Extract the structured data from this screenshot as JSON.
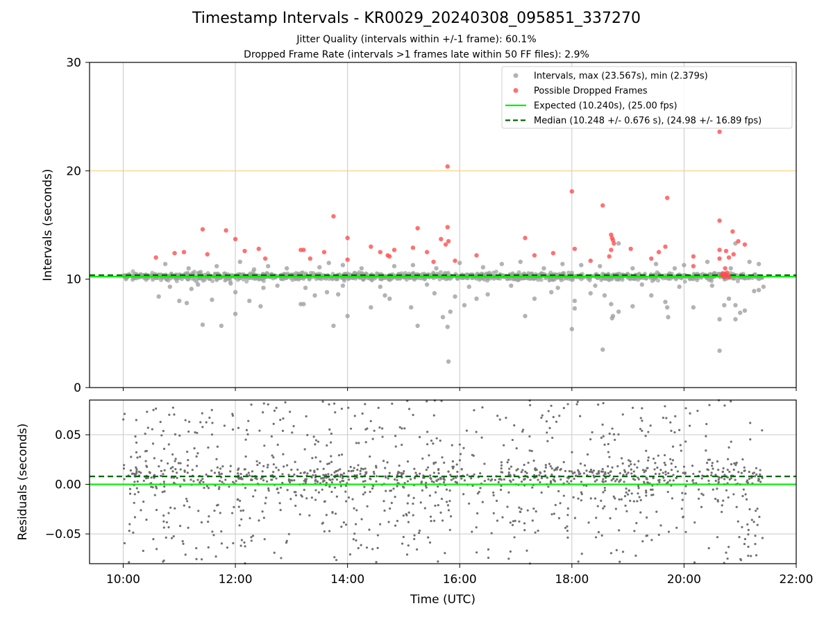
{
  "chart_data": [
    {
      "type": "scatter",
      "title": "Timestamp Intervals - KR0029_20240308_095851_337270",
      "subtitles": [
        "Jitter Quality (intervals within +/-1 frame): 60.1%",
        "Dropped Frame Rate (intervals >1 frames late within 50 FF files): 2.9%"
      ],
      "xlabel": "",
      "ylabel": "Intervals (seconds)",
      "xlim": [
        "09:24",
        "22:00"
      ],
      "ylim": [
        0,
        30
      ],
      "yticks": [
        0,
        10,
        20,
        30
      ],
      "ytick_labels": [
        "0",
        "10",
        "20",
        "30"
      ],
      "grid": "vertical",
      "legend": {
        "position": "top-right",
        "entries": [
          {
            "label": "Intervals, max (23.567s), min (2.379s)",
            "marker": "circle",
            "color": "#a0a0a0"
          },
          {
            "label": "Possible Dropped Frames",
            "marker": "circle",
            "color": "#ff4d4d"
          },
          {
            "label": "Expected (10.240s), (25.00 fps)",
            "marker": "line",
            "color": "#00ee00"
          },
          {
            "label": "Median (10.248 +/- 0.676 s), (24.98 +/- 16.89 fps)",
            "marker": "dashed",
            "color": "#006400"
          }
        ]
      },
      "reference_lines": {
        "expected": 10.24,
        "median": 10.248,
        "threshold": 20
      },
      "series": [
        {
          "name": "Possible Dropped Frames",
          "color": "#ff4d4d",
          "points": [
            [
              "10:35",
              12.0
            ],
            [
              "10:55",
              12.4
            ],
            [
              "11:05",
              12.5
            ],
            [
              "11:25",
              14.6
            ],
            [
              "11:30",
              12.3
            ],
            [
              "11:50",
              14.5
            ],
            [
              "12:00",
              13.7
            ],
            [
              "12:10",
              12.6
            ],
            [
              "12:25",
              12.8
            ],
            [
              "12:32",
              11.9
            ],
            [
              "13:10",
              12.7
            ],
            [
              "13:13",
              12.7
            ],
            [
              "13:20",
              11.9
            ],
            [
              "13:35",
              12.5
            ],
            [
              "13:45",
              15.8
            ],
            [
              "14:00",
              13.8
            ],
            [
              "14:00",
              11.8
            ],
            [
              "14:25",
              13.0
            ],
            [
              "14:35",
              12.5
            ],
            [
              "14:43",
              12.2
            ],
            [
              "14:45",
              12.1
            ],
            [
              "14:50",
              12.7
            ],
            [
              "15:10",
              12.9
            ],
            [
              "15:15",
              14.7
            ],
            [
              "15:25",
              12.5
            ],
            [
              "15:32",
              11.6
            ],
            [
              "15:40",
              13.7
            ],
            [
              "15:45",
              13.2
            ],
            [
              "15:47",
              14.8
            ],
            [
              "15:48",
              13.5
            ],
            [
              "15:47",
              20.4
            ],
            [
              "15:55",
              11.7
            ],
            [
              "16:18",
              12.2
            ],
            [
              "17:10",
              13.8
            ],
            [
              "17:20",
              12.2
            ],
            [
              "17:40",
              12.4
            ],
            [
              "18:00",
              18.1
            ],
            [
              "18:03",
              12.8
            ],
            [
              "18:20",
              11.7
            ],
            [
              "18:33",
              16.8
            ],
            [
              "18:42",
              14.1
            ],
            [
              "18:43",
              13.8
            ],
            [
              "18:44",
              13.6
            ],
            [
              "18:45",
              13.3
            ],
            [
              "18:42",
              12.7
            ],
            [
              "18:40",
              12.1
            ],
            [
              "19:03",
              12.8
            ],
            [
              "19:25",
              11.9
            ],
            [
              "19:33",
              12.5
            ],
            [
              "19:40",
              13.0
            ],
            [
              "19:42",
              17.5
            ],
            [
              "20:10",
              12.1
            ],
            [
              "20:10",
              11.2
            ],
            [
              "20:38",
              23.6
            ],
            [
              "20:38",
              15.4
            ],
            [
              "20:38",
              12.7
            ],
            [
              "20:38",
              11.9
            ],
            [
              "20:45",
              12.6
            ],
            [
              "20:48",
              12.0
            ],
            [
              "20:52",
              14.4
            ],
            [
              "20:53",
              12.3
            ],
            [
              "20:58",
              13.5
            ],
            [
              "21:05",
              13.2
            ],
            [
              "20:40",
              10.4
            ],
            [
              "20:42",
              10.5
            ],
            [
              "20:43",
              10.2
            ],
            [
              "20:44",
              10.3
            ],
            [
              "20:45",
              10.4
            ],
            [
              "20:46",
              10.6
            ],
            [
              "20:47",
              10.3
            ],
            [
              "20:48",
              10.2
            ],
            [
              "20:44",
              11.0
            ]
          ]
        },
        {
          "name": "Intervals",
          "color": "#a0a0a0",
          "points": [
            [
              "10:38",
              8.4
            ],
            [
              "11:00",
              8.0
            ],
            [
              "11:08",
              7.8
            ],
            [
              "11:13",
              9.1
            ],
            [
              "11:25",
              5.8
            ],
            [
              "11:35",
              8.1
            ],
            [
              "11:45",
              5.7
            ],
            [
              "12:00",
              6.8
            ],
            [
              "12:00",
              8.8
            ],
            [
              "12:15",
              8.0
            ],
            [
              "12:27",
              7.5
            ],
            [
              "12:30",
              9.2
            ],
            [
              "13:10",
              7.7
            ],
            [
              "13:13",
              7.7
            ],
            [
              "13:25",
              8.5
            ],
            [
              "13:38",
              8.8
            ],
            [
              "13:45",
              5.7
            ],
            [
              "13:50",
              8.6
            ],
            [
              "14:00",
              6.6
            ],
            [
              "14:25",
              7.4
            ],
            [
              "14:40",
              8.5
            ],
            [
              "14:45",
              8.2
            ],
            [
              "15:08",
              7.4
            ],
            [
              "15:15",
              5.7
            ],
            [
              "15:33",
              8.7
            ],
            [
              "15:42",
              6.5
            ],
            [
              "15:47",
              5.6
            ],
            [
              "15:48",
              2.4
            ],
            [
              "15:50",
              7.0
            ],
            [
              "15:55",
              8.4
            ],
            [
              "16:05",
              7.6
            ],
            [
              "16:18",
              8.2
            ],
            [
              "16:30",
              8.6
            ],
            [
              "17:10",
              6.6
            ],
            [
              "17:20",
              8.2
            ],
            [
              "17:38",
              8.8
            ],
            [
              "18:00",
              5.4
            ],
            [
              "18:03",
              8.0
            ],
            [
              "18:03",
              7.3
            ],
            [
              "18:20",
              8.7
            ],
            [
              "18:33",
              3.5
            ],
            [
              "18:35",
              8.5
            ],
            [
              "18:42",
              7.7
            ],
            [
              "18:43",
              6.4
            ],
            [
              "18:44",
              6.6
            ],
            [
              "18:50",
              7.0
            ],
            [
              "19:05",
              7.5
            ],
            [
              "19:25",
              8.5
            ],
            [
              "19:40",
              7.9
            ],
            [
              "19:42",
              7.4
            ],
            [
              "19:43",
              6.5
            ],
            [
              "20:10",
              7.4
            ],
            [
              "20:38",
              3.4
            ],
            [
              "20:38",
              6.3
            ],
            [
              "20:43",
              7.6
            ],
            [
              "20:48",
              8.2
            ],
            [
              "20:55",
              7.6
            ],
            [
              "20:55",
              6.3
            ],
            [
              "21:00",
              6.9
            ],
            [
              "21:05",
              7.1
            ],
            [
              "21:15",
              8.9
            ],
            [
              "21:20",
              9.0
            ],
            [
              "10:45",
              11.4
            ],
            [
              "11:10",
              11.0
            ],
            [
              "11:40",
              11.2
            ],
            [
              "12:05",
              11.6
            ],
            [
              "12:20",
              10.9
            ],
            [
              "12:35",
              11.2
            ],
            [
              "12:55",
              11.0
            ],
            [
              "13:30",
              11.1
            ],
            [
              "13:40",
              11.5
            ],
            [
              "13:55",
              11.3
            ],
            [
              "14:15",
              11.0
            ],
            [
              "14:50",
              11.2
            ],
            [
              "15:10",
              11.3
            ],
            [
              "15:35",
              11.0
            ],
            [
              "16:00",
              11.5
            ],
            [
              "16:25",
              11.1
            ],
            [
              "16:45",
              11.4
            ],
            [
              "17:05",
              11.6
            ],
            [
              "17:30",
              11.0
            ],
            [
              "17:50",
              11.4
            ],
            [
              "18:10",
              11.3
            ],
            [
              "18:30",
              11.2
            ],
            [
              "18:50",
              13.3
            ],
            [
              "19:05",
              11.0
            ],
            [
              "19:30",
              11.4
            ],
            [
              "19:50",
              11.0
            ],
            [
              "20:00",
              11.3
            ],
            [
              "20:25",
              11.6
            ],
            [
              "20:50",
              11.0
            ],
            [
              "20:55",
              13.3
            ],
            [
              "21:10",
              11.6
            ],
            [
              "21:20",
              11.4
            ],
            [
              "10:50",
              9.3
            ],
            [
              "11:20",
              9.5
            ],
            [
              "11:55",
              9.6
            ],
            [
              "12:45",
              9.4
            ],
            [
              "13:15",
              9.2
            ],
            [
              "13:55",
              9.4
            ],
            [
              "14:35",
              9.3
            ],
            [
              "15:25",
              9.5
            ],
            [
              "16:10",
              9.3
            ],
            [
              "16:55",
              9.4
            ],
            [
              "17:45",
              9.2
            ],
            [
              "18:25",
              9.4
            ],
            [
              "19:15",
              9.5
            ],
            [
              "19:55",
              9.3
            ],
            [
              "20:30",
              9.4
            ],
            [
              "21:25",
              9.3
            ]
          ],
          "band": {
            "x_range": [
              "10:00",
              "21:24"
            ],
            "y_range": [
              9.6,
              10.8
            ],
            "note": "dense band of intervals around the median"
          }
        }
      ]
    },
    {
      "type": "scatter",
      "xlabel": "Time (UTC)",
      "ylabel": "Residuals (seconds)",
      "xlim": [
        "09:24",
        "22:00"
      ],
      "ylim": [
        -0.08,
        0.085
      ],
      "yticks": [
        -0.05,
        0.0,
        0.05
      ],
      "ytick_labels": [
        "−0.05",
        "0.00",
        "0.05"
      ],
      "xticks": [
        "10:00",
        "12:00",
        "14:00",
        "16:00",
        "18:00",
        "20:00",
        "22:00"
      ],
      "xtick_labels": [
        "10:00",
        "12:00",
        "14:00",
        "16:00",
        "18:00",
        "20:00",
        "22:00"
      ],
      "grid": "both",
      "reference_lines": {
        "expected": 0.0,
        "median": 0.008
      },
      "series": [
        {
          "name": "Residuals",
          "color": "#707070",
          "x_range": [
            "10:00",
            "21:24"
          ],
          "y_range": [
            -0.08,
            0.085
          ],
          "note": "about 1400 residual points, concentrated near 0.008 with spread to the plot limits"
        }
      ]
    }
  ]
}
